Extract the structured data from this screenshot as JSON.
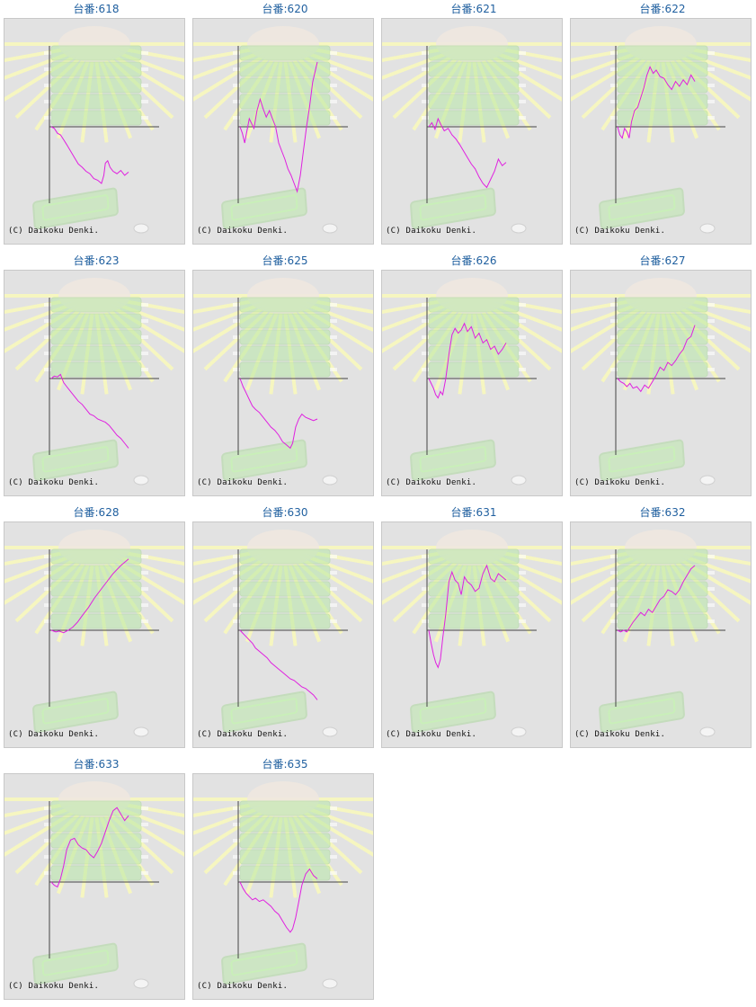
{
  "theme": {
    "title_color": "#1f5f9f",
    "panel_bg": "#e2e2e2",
    "line_color": "#e020e0",
    "axis_color": "#444444",
    "watermark_color": "#b9e8a8",
    "ray_color": "#f6f6c0"
  },
  "labels": {
    "copyright": "(C) Daikoku Denki."
  },
  "chart_data": [
    {
      "type": "line",
      "title": "台番:618",
      "x": [
        0,
        0.04,
        0.08,
        0.12,
        0.16,
        0.2,
        0.25,
        0.3,
        0.35,
        0.4,
        0.45,
        0.5,
        0.55,
        0.6,
        0.65,
        0.68,
        0.7,
        0.73,
        0.76,
        0.8,
        0.85,
        0.9,
        0.95,
        1
      ],
      "values": [
        0,
        -2,
        -8,
        -10,
        -16,
        -22,
        -30,
        -38,
        -46,
        -50,
        -55,
        -58,
        -64,
        -66,
        -70,
        -60,
        -45,
        -42,
        -50,
        -55,
        -58,
        -54,
        -60,
        -56
      ]
    },
    {
      "type": "line",
      "title": "台番:620",
      "x": [
        0,
        0.03,
        0.06,
        0.09,
        0.12,
        0.15,
        0.18,
        0.22,
        0.26,
        0.3,
        0.34,
        0.38,
        0.42,
        0.46,
        0.5,
        0.54,
        0.58,
        0.62,
        0.66,
        0.7,
        0.74,
        0.78,
        0.82,
        0.86,
        0.9,
        0.94,
        1
      ],
      "values": [
        0,
        -8,
        -20,
        -5,
        10,
        4,
        -2,
        20,
        34,
        22,
        12,
        20,
        10,
        0,
        -20,
        -30,
        -40,
        -52,
        -60,
        -70,
        -80,
        -60,
        -30,
        0,
        25,
        55,
        80
      ]
    },
    {
      "type": "line",
      "title": "台番:621",
      "x": [
        0,
        0.04,
        0.08,
        0.12,
        0.16,
        0.2,
        0.25,
        0.3,
        0.35,
        0.4,
        0.45,
        0.5,
        0.55,
        0.6,
        0.65,
        0.7,
        0.75,
        0.8,
        0.85,
        0.9,
        0.95,
        1
      ],
      "values": [
        0,
        5,
        -3,
        10,
        2,
        -5,
        -2,
        -10,
        -15,
        -22,
        -30,
        -38,
        -46,
        -52,
        -62,
        -70,
        -75,
        -65,
        -55,
        -40,
        -48,
        -44
      ]
    },
    {
      "type": "line",
      "title": "台番:622",
      "x": [
        0,
        0.03,
        0.06,
        0.09,
        0.12,
        0.15,
        0.18,
        0.22,
        0.26,
        0.3,
        0.34,
        0.38,
        0.42,
        0.46,
        0.5,
        0.55,
        0.6,
        0.65,
        0.7,
        0.75,
        0.8,
        0.85,
        0.9,
        0.95,
        1
      ],
      "values": [
        0,
        -10,
        -14,
        -2,
        -6,
        -14,
        6,
        20,
        24,
        36,
        48,
        64,
        74,
        66,
        70,
        62,
        60,
        52,
        46,
        56,
        50,
        58,
        52,
        64,
        56
      ]
    },
    {
      "type": "line",
      "title": "台番:623",
      "x": [
        0,
        0.04,
        0.08,
        0.12,
        0.16,
        0.2,
        0.25,
        0.3,
        0.35,
        0.4,
        0.45,
        0.5,
        0.55,
        0.6,
        0.65,
        0.7,
        0.75,
        0.8,
        0.85,
        0.9,
        0.95,
        1
      ],
      "values": [
        0,
        3,
        2,
        5,
        -5,
        -10,
        -16,
        -22,
        -28,
        -32,
        -38,
        -44,
        -46,
        -50,
        -52,
        -54,
        -58,
        -64,
        -70,
        -74,
        -80,
        -86
      ]
    },
    {
      "type": "line",
      "title": "台番:625",
      "x": [
        0,
        0.04,
        0.08,
        0.12,
        0.16,
        0.2,
        0.25,
        0.3,
        0.35,
        0.4,
        0.45,
        0.5,
        0.55,
        0.6,
        0.65,
        0.68,
        0.72,
        0.76,
        0.8,
        0.85,
        0.9,
        0.95,
        1
      ],
      "values": [
        0,
        -10,
        -18,
        -26,
        -34,
        -38,
        -42,
        -48,
        -54,
        -60,
        -64,
        -70,
        -78,
        -82,
        -86,
        -80,
        -60,
        -50,
        -44,
        -48,
        -50,
        -52,
        -50
      ]
    },
    {
      "type": "line",
      "title": "台番:626",
      "x": [
        0,
        0.03,
        0.06,
        0.09,
        0.12,
        0.15,
        0.18,
        0.22,
        0.26,
        0.3,
        0.34,
        0.38,
        0.42,
        0.46,
        0.5,
        0.55,
        0.6,
        0.65,
        0.7,
        0.75,
        0.8,
        0.85,
        0.9,
        0.95,
        1
      ],
      "values": [
        0,
        -6,
        -12,
        -20,
        -24,
        -16,
        -20,
        0,
        30,
        54,
        62,
        56,
        60,
        68,
        58,
        64,
        50,
        56,
        44,
        48,
        36,
        40,
        30,
        36,
        44
      ]
    },
    {
      "type": "line",
      "title": "台番:627",
      "x": [
        0,
        0.04,
        0.08,
        0.12,
        0.16,
        0.2,
        0.25,
        0.3,
        0.35,
        0.4,
        0.45,
        0.5,
        0.55,
        0.6,
        0.65,
        0.7,
        0.75,
        0.8,
        0.85,
        0.9,
        0.95,
        1
      ],
      "values": [
        0,
        -4,
        -6,
        -10,
        -6,
        -12,
        -10,
        -16,
        -8,
        -12,
        -4,
        4,
        14,
        10,
        20,
        16,
        22,
        30,
        36,
        48,
        52,
        66
      ]
    },
    {
      "type": "line",
      "title": "台番:628",
      "x": [
        0,
        0.06,
        0.1,
        0.16,
        0.22,
        0.28,
        0.34,
        0.4,
        0.48,
        0.56,
        0.64,
        0.72,
        0.8,
        0.9,
        1
      ],
      "values": [
        0,
        -2,
        -1,
        -3,
        0,
        4,
        10,
        18,
        28,
        40,
        50,
        60,
        70,
        80,
        88
      ]
    },
    {
      "type": "line",
      "title": "台番:630",
      "x": [
        0,
        0.04,
        0.08,
        0.12,
        0.16,
        0.2,
        0.25,
        0.3,
        0.35,
        0.4,
        0.45,
        0.5,
        0.55,
        0.6,
        0.65,
        0.7,
        0.75,
        0.8,
        0.85,
        0.9,
        0.95,
        1
      ],
      "values": [
        0,
        -4,
        -8,
        -12,
        -16,
        -22,
        -26,
        -30,
        -34,
        -40,
        -44,
        -48,
        -52,
        -56,
        -60,
        -62,
        -66,
        -70,
        -72,
        -76,
        -80,
        -86
      ]
    },
    {
      "type": "line",
      "title": "台番:631",
      "x": [
        0,
        0.03,
        0.06,
        0.09,
        0.12,
        0.15,
        0.18,
        0.22,
        0.26,
        0.3,
        0.34,
        0.38,
        0.42,
        0.46,
        0.5,
        0.55,
        0.6,
        0.65,
        0.7,
        0.75,
        0.8,
        0.85,
        0.9,
        0.95,
        1
      ],
      "values": [
        0,
        -16,
        -30,
        -40,
        -46,
        -36,
        -10,
        20,
        60,
        72,
        62,
        58,
        44,
        66,
        60,
        56,
        48,
        52,
        70,
        80,
        64,
        60,
        70,
        66,
        62
      ]
    },
    {
      "type": "line",
      "title": "台番:632",
      "x": [
        0,
        0.04,
        0.08,
        0.12,
        0.16,
        0.2,
        0.25,
        0.3,
        0.35,
        0.4,
        0.45,
        0.5,
        0.55,
        0.6,
        0.65,
        0.7,
        0.75,
        0.8,
        0.85,
        0.9,
        0.95,
        1
      ],
      "values": [
        0,
        -2,
        0,
        -2,
        4,
        10,
        16,
        22,
        18,
        26,
        22,
        30,
        38,
        42,
        50,
        48,
        44,
        50,
        60,
        68,
        76,
        80
      ]
    },
    {
      "type": "line",
      "title": "台番:633",
      "x": [
        0,
        0.04,
        0.08,
        0.12,
        0.16,
        0.2,
        0.25,
        0.3,
        0.35,
        0.4,
        0.45,
        0.5,
        0.55,
        0.6,
        0.65,
        0.7,
        0.75,
        0.8,
        0.85,
        0.9,
        0.95,
        1
      ],
      "values": [
        0,
        -4,
        -6,
        4,
        20,
        40,
        52,
        54,
        46,
        42,
        40,
        34,
        30,
        38,
        48,
        62,
        76,
        88,
        92,
        84,
        76,
        82
      ]
    },
    {
      "type": "line",
      "title": "台番:635",
      "x": [
        0,
        0.04,
        0.08,
        0.12,
        0.16,
        0.2,
        0.25,
        0.3,
        0.35,
        0.4,
        0.45,
        0.5,
        0.55,
        0.6,
        0.65,
        0.68,
        0.72,
        0.76,
        0.8,
        0.85,
        0.9,
        0.95,
        1
      ],
      "values": [
        0,
        -8,
        -14,
        -18,
        -22,
        -20,
        -24,
        -22,
        -26,
        -30,
        -36,
        -40,
        -48,
        -56,
        -62,
        -58,
        -44,
        -24,
        -4,
        10,
        16,
        8,
        4
      ]
    }
  ]
}
